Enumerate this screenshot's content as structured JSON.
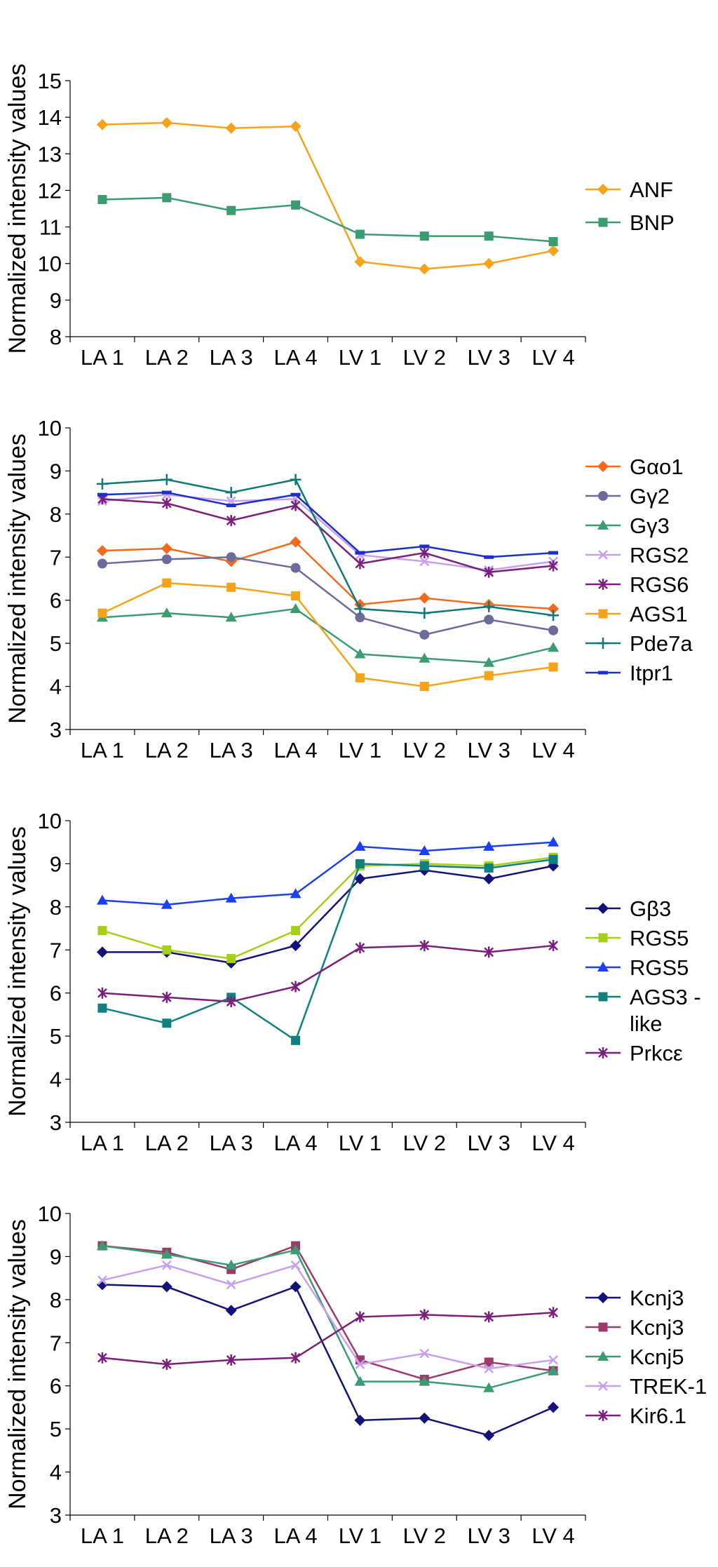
{
  "chart_data": [
    {
      "type": "line",
      "ylabel": "Normalized intensity values",
      "xlabel": "",
      "categories": [
        "LA 1",
        "LA 2",
        "LA 3",
        "LA 4",
        "LV 1",
        "LV 2",
        "LV 3",
        "LV 4"
      ],
      "ylim": [
        8,
        15
      ],
      "yticks": [
        8,
        9,
        10,
        11,
        12,
        13,
        14,
        15
      ],
      "grid": false,
      "legend_position": "right",
      "series": [
        {
          "name": "ANF",
          "color": "#f5a31a",
          "marker": "diamond",
          "values": [
            13.8,
            13.85,
            13.7,
            13.75,
            10.05,
            9.85,
            10.0,
            10.35
          ]
        },
        {
          "name": "BNP",
          "color": "#3b9c72",
          "marker": "square",
          "values": [
            11.75,
            11.8,
            11.45,
            11.6,
            10.8,
            10.75,
            10.75,
            10.6
          ]
        }
      ]
    },
    {
      "type": "line",
      "ylabel": "Normalized intensity values",
      "xlabel": "",
      "categories": [
        "LA 1",
        "LA 2",
        "LA 3",
        "LA 4",
        "LV 1",
        "LV 2",
        "LV 3",
        "LV 4"
      ],
      "ylim": [
        3,
        10
      ],
      "yticks": [
        3,
        4,
        5,
        6,
        7,
        8,
        9,
        10
      ],
      "grid": false,
      "legend_position": "right",
      "series": [
        {
          "name": "Gαo1",
          "color": "#f5691c",
          "marker": "diamond",
          "values": [
            7.15,
            7.2,
            6.9,
            7.35,
            5.9,
            6.05,
            5.9,
            5.8
          ]
        },
        {
          "name": "Gγ2",
          "color": "#6c6c9c",
          "marker": "circle",
          "values": [
            6.85,
            6.95,
            7.0,
            6.75,
            5.6,
            5.2,
            5.55,
            5.3
          ]
        },
        {
          "name": "Gγ3",
          "color": "#3b9c72",
          "marker": "triangle",
          "values": [
            5.6,
            5.7,
            5.6,
            5.8,
            4.75,
            4.65,
            4.55,
            4.9
          ]
        },
        {
          "name": "RGS2",
          "color": "#c8a0f0",
          "marker": "x",
          "values": [
            8.3,
            8.45,
            8.3,
            8.35,
            7.05,
            6.9,
            6.7,
            6.9
          ]
        },
        {
          "name": "RGS6",
          "color": "#7a1f7a",
          "marker": "star",
          "values": [
            8.35,
            8.25,
            7.85,
            8.2,
            6.85,
            7.1,
            6.65,
            6.8
          ]
        },
        {
          "name": "AGS1",
          "color": "#f5a31a",
          "marker": "square",
          "values": [
            5.7,
            6.4,
            6.3,
            6.1,
            4.2,
            4.0,
            4.25,
            4.45
          ]
        },
        {
          "name": "Pde7a",
          "color": "#107878",
          "marker": "plus",
          "values": [
            8.7,
            8.8,
            8.5,
            8.8,
            5.8,
            5.7,
            5.85,
            5.65
          ]
        },
        {
          "name": "Itpr1",
          "color": "#1a2fcc",
          "marker": "dash",
          "values": [
            8.45,
            8.5,
            8.2,
            8.45,
            7.1,
            7.25,
            7.0,
            7.1
          ]
        }
      ]
    },
    {
      "type": "line",
      "ylabel": "Normalized intensity values",
      "xlabel": "",
      "categories": [
        "LA 1",
        "LA 2",
        "LA 3",
        "LA 4",
        "LV 1",
        "LV 2",
        "LV 3",
        "LV 4"
      ],
      "ylim": [
        3,
        10
      ],
      "yticks": [
        3,
        4,
        5,
        6,
        7,
        8,
        9,
        10
      ],
      "grid": false,
      "legend_position": "right",
      "series": [
        {
          "name": "Gβ3",
          "color": "#12127a",
          "marker": "diamond",
          "values": [
            6.95,
            6.95,
            6.7,
            7.1,
            8.65,
            8.85,
            8.65,
            8.95
          ]
        },
        {
          "name": "RGS5",
          "color": "#a6cf1a",
          "marker": "square",
          "values": [
            7.45,
            7.0,
            6.8,
            7.45,
            8.95,
            9.0,
            8.95,
            9.15
          ]
        },
        {
          "name": "RGS5",
          "color": "#1a3ff5",
          "marker": "triangle",
          "values": [
            8.15,
            8.05,
            8.2,
            8.3,
            9.4,
            9.3,
            9.4,
            9.5
          ]
        },
        {
          "name": "AGS3 - like",
          "color": "#108080",
          "marker": "square",
          "values": [
            5.65,
            5.3,
            5.9,
            4.9,
            9.0,
            8.95,
            8.9,
            9.1
          ]
        },
        {
          "name": "Prkcε",
          "color": "#7a1f7a",
          "marker": "star",
          "values": [
            6.0,
            5.9,
            5.8,
            6.15,
            7.05,
            7.1,
            6.95,
            7.1
          ]
        }
      ]
    },
    {
      "type": "line",
      "ylabel": "Normalized intensity values",
      "xlabel": "",
      "categories": [
        "LA 1",
        "LA 2",
        "LA 3",
        "LA 4",
        "LV 1",
        "LV 2",
        "LV 3",
        "LV 4"
      ],
      "ylim": [
        3,
        10
      ],
      "yticks": [
        3,
        4,
        5,
        6,
        7,
        8,
        9,
        10
      ],
      "grid": false,
      "legend_position": "right",
      "series": [
        {
          "name": "Kcnj3",
          "color": "#12127a",
          "marker": "diamond",
          "values": [
            8.35,
            8.3,
            7.75,
            8.3,
            5.2,
            5.25,
            4.85,
            5.5
          ]
        },
        {
          "name": "Kcnj3",
          "color": "#9c3a6a",
          "marker": "square",
          "values": [
            9.25,
            9.1,
            8.7,
            9.25,
            6.6,
            6.15,
            6.55,
            6.35
          ]
        },
        {
          "name": "Kcnj5",
          "color": "#3b9c72",
          "marker": "triangle",
          "values": [
            9.25,
            9.05,
            8.8,
            9.15,
            6.1,
            6.1,
            5.95,
            6.35
          ]
        },
        {
          "name": "TREK-1",
          "color": "#c8a0f0",
          "marker": "x",
          "values": [
            8.45,
            8.8,
            8.35,
            8.8,
            6.5,
            6.75,
            6.4,
            6.6
          ]
        },
        {
          "name": "Kir6.1",
          "color": "#7a1f7a",
          "marker": "star",
          "values": [
            6.65,
            6.5,
            6.6,
            6.65,
            7.6,
            7.65,
            7.6,
            7.7
          ]
        }
      ]
    }
  ]
}
